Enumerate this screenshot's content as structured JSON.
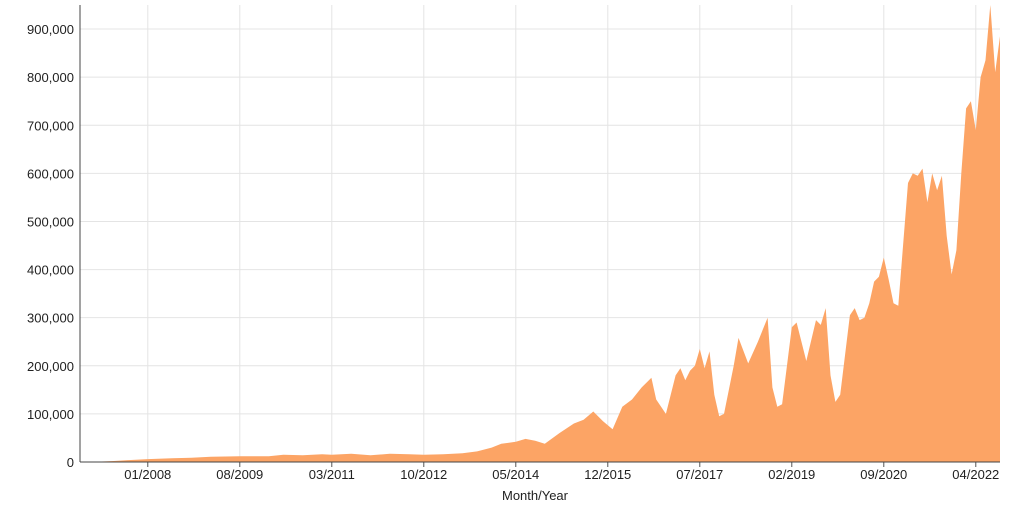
{
  "chart_data": {
    "type": "area",
    "title": "",
    "xlabel": "Month/Year",
    "ylabel": "",
    "xlim": [
      "2006-11",
      "2022-09"
    ],
    "ylim": [
      0,
      950000
    ],
    "x_tick_labels": [
      "01/2008",
      "08/2009",
      "03/2011",
      "10/2012",
      "05/2014",
      "12/2015",
      "07/2017",
      "02/2019",
      "09/2020",
      "04/2022"
    ],
    "y_tick_labels": [
      "0",
      "100,000",
      "200,000",
      "300,000",
      "400,000",
      "500,000",
      "600,000",
      "700,000",
      "800,000",
      "900,000"
    ],
    "grid": true,
    "series": [
      {
        "color": "#fca465",
        "points": [
          [
            "2007-01",
            0
          ],
          [
            "2007-06",
            2000
          ],
          [
            "2007-09",
            4000
          ],
          [
            "2008-01",
            6000
          ],
          [
            "2008-06",
            8000
          ],
          [
            "2008-10",
            9000
          ],
          [
            "2009-02",
            11000
          ],
          [
            "2009-08",
            12000
          ],
          [
            "2010-02",
            12000
          ],
          [
            "2010-05",
            15000
          ],
          [
            "2010-09",
            14000
          ],
          [
            "2011-01",
            16000
          ],
          [
            "2011-03",
            15000
          ],
          [
            "2011-07",
            17000
          ],
          [
            "2011-11",
            14000
          ],
          [
            "2012-03",
            17000
          ],
          [
            "2012-07",
            16000
          ],
          [
            "2012-10",
            15000
          ],
          [
            "2013-02",
            16000
          ],
          [
            "2013-06",
            18000
          ],
          [
            "2013-09",
            22000
          ],
          [
            "2013-12",
            30000
          ],
          [
            "2014-02",
            38000
          ],
          [
            "2014-05",
            42000
          ],
          [
            "2014-07",
            48000
          ],
          [
            "2014-09",
            44000
          ],
          [
            "2014-11",
            38000
          ],
          [
            "2015-02",
            60000
          ],
          [
            "2015-05",
            80000
          ],
          [
            "2015-07",
            88000
          ],
          [
            "2015-09",
            105000
          ],
          [
            "2015-11",
            85000
          ],
          [
            "2016-01",
            68000
          ],
          [
            "2016-03",
            115000
          ],
          [
            "2016-05",
            130000
          ],
          [
            "2016-07",
            155000
          ],
          [
            "2016-09",
            175000
          ],
          [
            "2016-10",
            130000
          ],
          [
            "2016-12",
            100000
          ],
          [
            "2017-02",
            180000
          ],
          [
            "2017-03",
            195000
          ],
          [
            "2017-04",
            170000
          ],
          [
            "2017-05",
            190000
          ],
          [
            "2017-06",
            200000
          ],
          [
            "2017-07",
            235000
          ],
          [
            "2017-08",
            195000
          ],
          [
            "2017-09",
            230000
          ],
          [
            "2017-10",
            140000
          ],
          [
            "2017-11",
            95000
          ],
          [
            "2017-12",
            100000
          ],
          [
            "2018-02",
            200000
          ],
          [
            "2018-03",
            258000
          ],
          [
            "2018-05",
            205000
          ],
          [
            "2018-07",
            250000
          ],
          [
            "2018-09",
            300000
          ],
          [
            "2018-10",
            155000
          ],
          [
            "2018-11",
            115000
          ],
          [
            "2018-12",
            120000
          ],
          [
            "2019-02",
            280000
          ],
          [
            "2019-03",
            290000
          ],
          [
            "2019-05",
            210000
          ],
          [
            "2019-07",
            295000
          ],
          [
            "2019-08",
            285000
          ],
          [
            "2019-09",
            320000
          ],
          [
            "2019-10",
            180000
          ],
          [
            "2019-11",
            125000
          ],
          [
            "2019-12",
            140000
          ],
          [
            "2020-02",
            305000
          ],
          [
            "2020-03",
            320000
          ],
          [
            "2020-04",
            295000
          ],
          [
            "2020-05",
            300000
          ],
          [
            "2020-06",
            330000
          ],
          [
            "2020-07",
            375000
          ],
          [
            "2020-08",
            385000
          ],
          [
            "2020-09",
            425000
          ],
          [
            "2020-10",
            380000
          ],
          [
            "2020-11",
            330000
          ],
          [
            "2020-12",
            325000
          ],
          [
            "2021-02",
            580000
          ],
          [
            "2021-03",
            600000
          ],
          [
            "2021-04",
            595000
          ],
          [
            "2021-05",
            610000
          ],
          [
            "2021-06",
            540000
          ],
          [
            "2021-07",
            600000
          ],
          [
            "2021-08",
            565000
          ],
          [
            "2021-09",
            595000
          ],
          [
            "2021-10",
            470000
          ],
          [
            "2021-11",
            390000
          ],
          [
            "2021-12",
            440000
          ],
          [
            "2022-01",
            600000
          ],
          [
            "2022-02",
            735000
          ],
          [
            "2022-03",
            750000
          ],
          [
            "2022-04",
            690000
          ],
          [
            "2022-05",
            800000
          ],
          [
            "2022-06",
            835000
          ],
          [
            "2022-07",
            950000
          ],
          [
            "2022-08",
            810000
          ],
          [
            "2022-09",
            885000
          ]
        ]
      }
    ]
  }
}
